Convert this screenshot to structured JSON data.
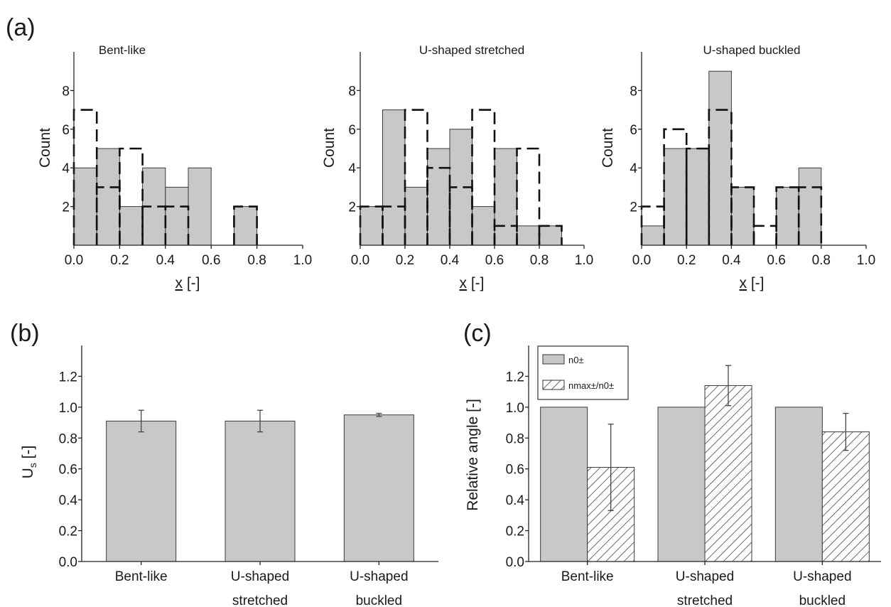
{
  "panel_labels": [
    "(a)",
    "(b)",
    "(c)"
  ],
  "colors": {
    "bar_fill": "#c8c8c8",
    "bar_stroke": "#3a3a3a",
    "dash": "#111111",
    "axis": "#222222"
  },
  "chart_data": [
    {
      "panel": "(a)",
      "type": "bar",
      "title": "Bent-like",
      "xlabel": "x",
      "xlabel_suffix": " [-]",
      "ylabel": "Count",
      "xlim": [
        0,
        1.0
      ],
      "ylim": [
        0,
        10
      ],
      "x_ticks": [
        "0.0",
        "0.2",
        "0.4",
        "0.6",
        "0.8",
        "1.0"
      ],
      "y_ticks": [
        "2",
        "4",
        "6",
        "8"
      ],
      "bin_edges": [
        0,
        0.1,
        0.2,
        0.3,
        0.4,
        0.5,
        0.6,
        0.7,
        0.8,
        0.9,
        1.0
      ],
      "series": [
        {
          "style": "filled",
          "values": [
            4,
            5,
            2,
            4,
            3,
            4,
            0,
            2,
            0,
            0
          ]
        },
        {
          "style": "dashed-outline",
          "values": [
            7,
            3,
            5,
            2,
            2,
            0,
            0,
            2,
            0,
            0
          ]
        }
      ]
    },
    {
      "panel": "(a)",
      "type": "bar",
      "title": "U-shaped stretched",
      "xlabel": "x",
      "xlabel_suffix": " [-]",
      "ylabel": "Count",
      "xlim": [
        0,
        1.0
      ],
      "ylim": [
        0,
        10
      ],
      "x_ticks": [
        "0.0",
        "0.2",
        "0.4",
        "0.6",
        "0.8",
        "1.0"
      ],
      "y_ticks": [
        "2",
        "4",
        "6",
        "8"
      ],
      "bin_edges": [
        0,
        0.1,
        0.2,
        0.3,
        0.4,
        0.5,
        0.6,
        0.7,
        0.8,
        0.9,
        1.0
      ],
      "series": [
        {
          "style": "filled",
          "values": [
            2,
            7,
            3,
            5,
            6,
            2,
            5,
            1,
            1,
            0
          ]
        },
        {
          "style": "dashed-outline",
          "values": [
            2,
            2,
            7,
            4,
            3,
            7,
            1,
            5,
            1,
            0
          ]
        }
      ]
    },
    {
      "panel": "(a)",
      "type": "bar",
      "title": "U-shaped buckled",
      "xlabel": "x",
      "xlabel_suffix": " [-]",
      "ylabel": "Count",
      "xlim": [
        0,
        1.0
      ],
      "ylim": [
        0,
        10
      ],
      "x_ticks": [
        "0.0",
        "0.2",
        "0.4",
        "0.6",
        "0.8",
        "1.0"
      ],
      "y_ticks": [
        "2",
        "4",
        "6",
        "8"
      ],
      "bin_edges": [
        0,
        0.1,
        0.2,
        0.3,
        0.4,
        0.5,
        0.6,
        0.7,
        0.8,
        0.9,
        1.0
      ],
      "series": [
        {
          "style": "filled",
          "values": [
            1,
            5,
            5,
            9,
            3,
            0,
            3,
            4,
            0,
            0
          ]
        },
        {
          "style": "dashed-outline",
          "values": [
            2,
            6,
            5,
            7,
            3,
            1,
            3,
            3,
            0,
            0
          ]
        }
      ]
    },
    {
      "panel": "(b)",
      "type": "bar",
      "ylabel_main": "U",
      "ylabel_sub": "s",
      "ylabel_suffix": " [-]",
      "ylim": [
        0,
        1.4
      ],
      "y_ticks": [
        "0.0",
        "0.2",
        "0.4",
        "0.6",
        "0.8",
        "1.0",
        "1.2"
      ],
      "categories": [
        [
          "Bent-like"
        ],
        [
          "U-shaped",
          "stretched"
        ],
        [
          "U-shaped",
          "buckled"
        ]
      ],
      "values": [
        0.91,
        0.91,
        0.95
      ],
      "errors": [
        0.07,
        0.07,
        0.01
      ]
    },
    {
      "panel": "(c)",
      "type": "bar",
      "ylabel": "Relative angle [-]",
      "ylim": [
        0,
        1.4
      ],
      "y_ticks": [
        "0.0",
        "0.2",
        "0.4",
        "0.6",
        "0.8",
        "1.0",
        "1.2"
      ],
      "categories": [
        [
          "Bent-like"
        ],
        [
          "U-shaped",
          "stretched"
        ],
        [
          "U-shaped",
          "buckled"
        ]
      ],
      "legend_placement": "top-left",
      "series": [
        {
          "legend": "n0±",
          "style": "filled",
          "values": [
            1.0,
            1.0,
            1.0
          ],
          "errors": [
            0,
            0,
            0
          ]
        },
        {
          "legend": "nmax±/n0±",
          "style": "hatched",
          "values": [
            0.61,
            1.14,
            0.84
          ],
          "errors": [
            0.28,
            0.13,
            0.12
          ]
        }
      ]
    }
  ]
}
